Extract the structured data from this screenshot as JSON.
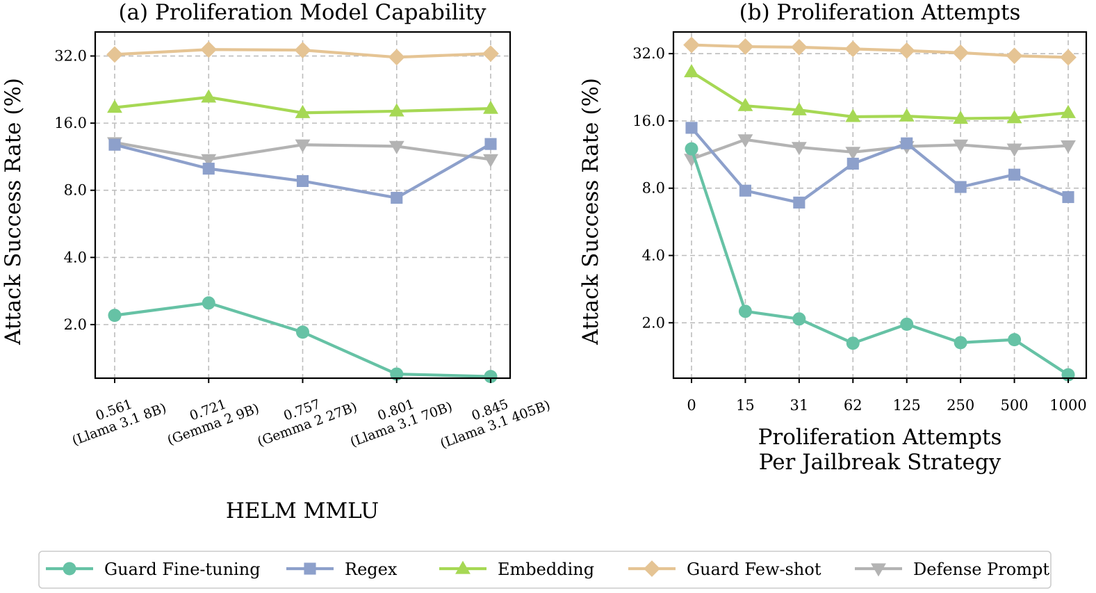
{
  "colors": {
    "Guard Fine-tuning": "#66c2a5",
    "Regex": "#8da0cb",
    "Embedding": "#a6d854",
    "Guard Few-shot": "#e5c494",
    "Defense Prompt": "#b3b3b3"
  },
  "markers": {
    "Guard Fine-tuning": "circle",
    "Regex": "square",
    "Embedding": "triangle-up",
    "Guard Few-shot": "diamond",
    "Defense Prompt": "triangle-down"
  },
  "legend": [
    "Guard Fine-tuning",
    "Regex",
    "Embedding",
    "Guard Few-shot",
    "Defense Prompt"
  ],
  "chart_data": [
    {
      "type": "line",
      "title": "(a) Proliferation Model Capability",
      "xlabel": "HELM MMLU",
      "ylabel": "Attack Success Rate (%)",
      "yscale": "log2",
      "ylim": [
        1.15,
        41.0
      ],
      "yticks": [
        "2.0",
        "4.0",
        "8.0",
        "16.0",
        "32.0"
      ],
      "grid": true,
      "categories": [
        [
          "0.561",
          "(Llama 3.1 8B)"
        ],
        [
          "0.721",
          "(Gemma 2 9B)"
        ],
        [
          "0.757",
          "(Gemma 2 27B)"
        ],
        [
          "0.801",
          "(Llama 3.1 70B)"
        ],
        [
          "0.845",
          "(Llama 3.1 405B)"
        ]
      ],
      "series": [
        {
          "name": "Guard Fine-tuning",
          "values": [
            2.2,
            2.5,
            1.85,
            1.2,
            1.17
          ]
        },
        {
          "name": "Regex",
          "values": [
            12.8,
            10.0,
            8.8,
            7.4,
            12.9
          ]
        },
        {
          "name": "Embedding",
          "values": [
            18.8,
            20.9,
            17.8,
            18.1,
            18.6
          ]
        },
        {
          "name": "Guard Few-shot",
          "values": [
            32.5,
            34.2,
            34.0,
            31.6,
            32.8
          ]
        },
        {
          "name": "Defense Prompt",
          "values": [
            13.1,
            11.0,
            12.8,
            12.6,
            11.0
          ]
        }
      ]
    },
    {
      "type": "line",
      "title": "(b) Proliferation Attempts",
      "xlabel": [
        "Proliferation Attempts",
        "Per Jailbreak Strategy"
      ],
      "ylabel": "Attack Success Rate (%)",
      "yscale": "log2",
      "ylim": [
        1.13,
        40.0
      ],
      "yticks": [
        "2.0",
        "4.0",
        "8.0",
        "16.0",
        "32.0"
      ],
      "grid": true,
      "categories": [
        [
          "0"
        ],
        [
          "15"
        ],
        [
          "31"
        ],
        [
          "62"
        ],
        [
          "125"
        ],
        [
          "250"
        ],
        [
          "500"
        ],
        [
          "1000"
        ]
      ],
      "series": [
        {
          "name": "Guard Fine-tuning",
          "values": [
            12.0,
            2.25,
            2.08,
            1.62,
            1.97,
            1.63,
            1.68,
            1.17
          ]
        },
        {
          "name": "Regex",
          "values": [
            14.9,
            7.8,
            6.9,
            10.3,
            12.7,
            8.1,
            9.2,
            7.3
          ]
        },
        {
          "name": "Embedding",
          "values": [
            26.5,
            18.7,
            17.9,
            16.7,
            16.8,
            16.4,
            16.5,
            17.4
          ]
        },
        {
          "name": "Guard Few-shot",
          "values": [
            35.0,
            34.4,
            34.2,
            33.6,
            33.0,
            32.3,
            31.3,
            30.8
          ]
        },
        {
          "name": "Defense Prompt",
          "values": [
            10.8,
            13.2,
            12.2,
            11.6,
            12.3,
            12.5,
            12.0,
            12.4
          ]
        }
      ]
    }
  ]
}
